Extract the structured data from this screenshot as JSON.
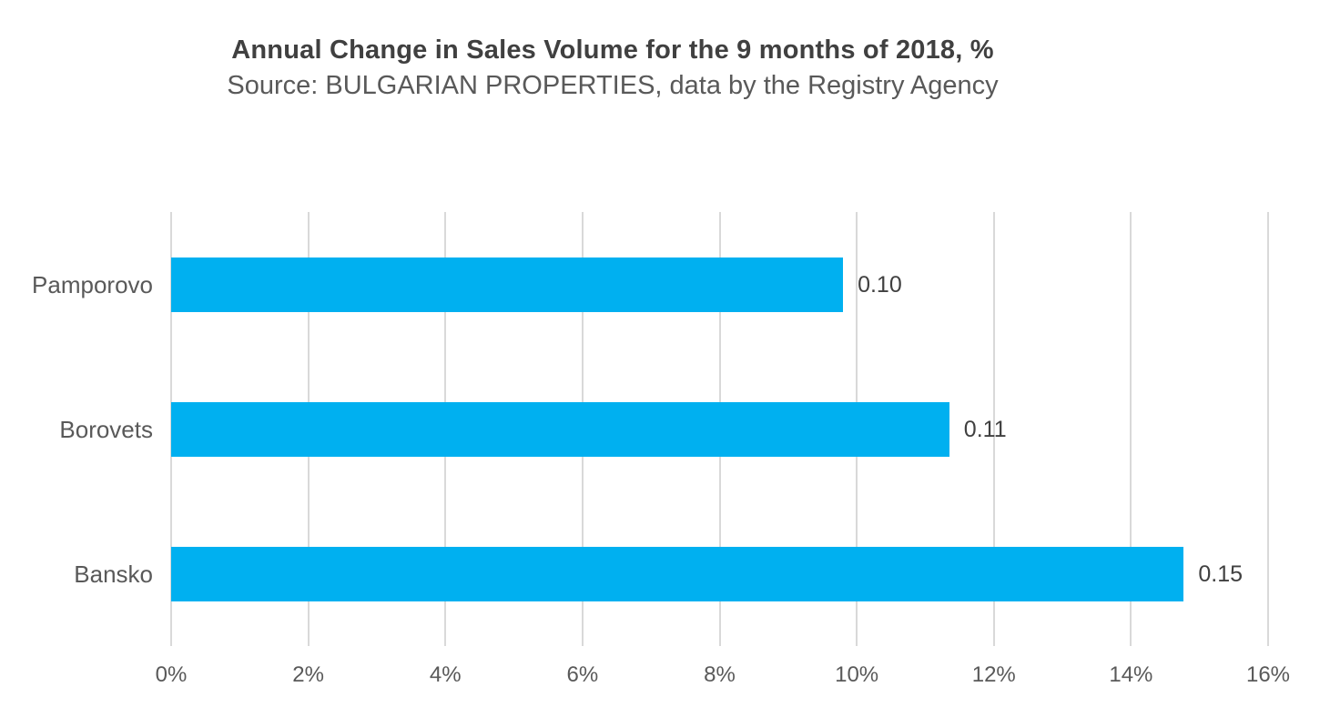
{
  "page": {
    "background": "#FFFFFF"
  },
  "header": {
    "title": "Annual Change in Sales Volume for the 9 months of 2018, %",
    "subtitle": "Source: BULGARIAN PROPERTIES, data by the Registry Agency"
  },
  "colors": {
    "bar": "#00B0F0",
    "gridline": "#D9D9D9",
    "title_text": "#404040",
    "subtitle_text": "#595959",
    "axis_text": "#595959",
    "category_text": "#595959",
    "value_label_text": "#404040"
  },
  "chart_data": {
    "type": "bar",
    "orientation": "horizontal",
    "title": "Annual Change in Sales Volume for the 9 months of 2018, %",
    "subtitle": "Source: BULGARIAN PROPERTIES, data by the Registry Agency",
    "categories": [
      "Pamporovo",
      "Borovets",
      "Bansko"
    ],
    "series": [
      {
        "name": "Annual change in sales volume",
        "values_percent": [
          9.8,
          11.35,
          14.77
        ],
        "value_labels": [
          "0.10",
          "0.11",
          "0.15"
        ]
      }
    ],
    "x_axis": {
      "tick_labels": [
        "0%",
        "2%",
        "4%",
        "6%",
        "8%",
        "10%",
        "12%",
        "14%",
        "16%"
      ],
      "min_percent": 0,
      "max_percent": 16,
      "step_percent": 2
    },
    "y_axis": {
      "label": ""
    },
    "xlabel": "",
    "ylabel": "",
    "grid": "vertical-only",
    "legend": "none",
    "bar_color": "#00B0F0"
  }
}
